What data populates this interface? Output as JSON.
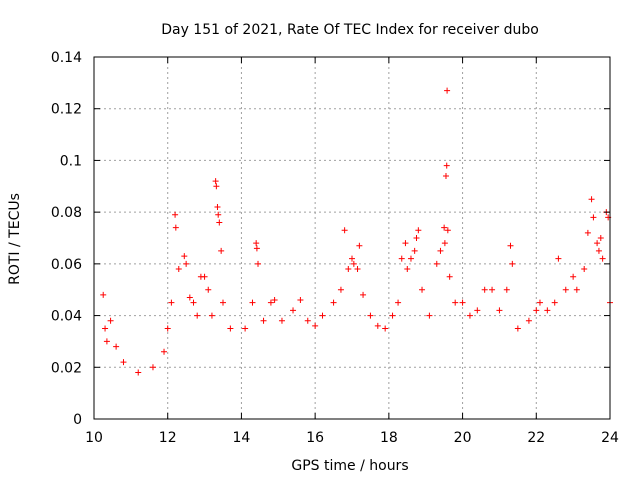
{
  "chart_data": {
    "type": "scatter",
    "title": "Day 151 of 2021, Rate Of TEC Index for receiver dubo",
    "xlabel": "GPS time / hours",
    "ylabel": "ROTI / TECUs",
    "xlim": [
      10,
      24
    ],
    "ylim": [
      0,
      0.14
    ],
    "x_ticks": [
      10,
      12,
      14,
      16,
      18,
      20,
      22,
      24
    ],
    "x_tick_labels": [
      "10",
      "12",
      "14",
      "16",
      "18",
      "20",
      "22",
      "24"
    ],
    "y_ticks": [
      0,
      0.02,
      0.04,
      0.06,
      0.08,
      0.1,
      0.12,
      0.14
    ],
    "y_tick_labels": [
      "0",
      "0.02",
      "0.04",
      "0.06",
      "0.08",
      "0.1",
      "0.12",
      "0.14"
    ],
    "grid": true,
    "marker": "+",
    "color": "#ff0000",
    "series": [
      {
        "points": [
          [
            10.25,
            0.048
          ],
          [
            10.3,
            0.035
          ],
          [
            10.35,
            0.03
          ],
          [
            10.45,
            0.038
          ],
          [
            10.6,
            0.028
          ],
          [
            10.8,
            0.022
          ],
          [
            11.2,
            0.018
          ],
          [
            11.6,
            0.02
          ],
          [
            11.9,
            0.026
          ],
          [
            12.0,
            0.035
          ],
          [
            12.1,
            0.045
          ],
          [
            12.2,
            0.079
          ],
          [
            12.22,
            0.074
          ],
          [
            12.3,
            0.058
          ],
          [
            12.45,
            0.063
          ],
          [
            12.5,
            0.06
          ],
          [
            12.6,
            0.047
          ],
          [
            12.7,
            0.045
          ],
          [
            12.8,
            0.04
          ],
          [
            12.9,
            0.055
          ],
          [
            13.0,
            0.055
          ],
          [
            13.1,
            0.05
          ],
          [
            13.2,
            0.04
          ],
          [
            13.3,
            0.092
          ],
          [
            13.32,
            0.09
          ],
          [
            13.35,
            0.082
          ],
          [
            13.37,
            0.079
          ],
          [
            13.4,
            0.076
          ],
          [
            13.45,
            0.065
          ],
          [
            13.5,
            0.045
          ],
          [
            13.7,
            0.035
          ],
          [
            14.1,
            0.035
          ],
          [
            14.3,
            0.045
          ],
          [
            14.4,
            0.068
          ],
          [
            14.42,
            0.066
          ],
          [
            14.45,
            0.06
          ],
          [
            14.6,
            0.038
          ],
          [
            14.8,
            0.045
          ],
          [
            14.9,
            0.046
          ],
          [
            15.1,
            0.038
          ],
          [
            15.4,
            0.042
          ],
          [
            15.6,
            0.046
          ],
          [
            15.8,
            0.038
          ],
          [
            16.0,
            0.036
          ],
          [
            16.2,
            0.04
          ],
          [
            16.5,
            0.045
          ],
          [
            16.7,
            0.05
          ],
          [
            16.8,
            0.073
          ],
          [
            16.9,
            0.058
          ],
          [
            17.0,
            0.062
          ],
          [
            17.05,
            0.06
          ],
          [
            17.15,
            0.058
          ],
          [
            17.2,
            0.067
          ],
          [
            17.3,
            0.048
          ],
          [
            17.5,
            0.04
          ],
          [
            17.7,
            0.036
          ],
          [
            17.9,
            0.035
          ],
          [
            18.1,
            0.04
          ],
          [
            18.25,
            0.045
          ],
          [
            18.35,
            0.062
          ],
          [
            18.45,
            0.068
          ],
          [
            18.5,
            0.058
          ],
          [
            18.6,
            0.062
          ],
          [
            18.7,
            0.065
          ],
          [
            18.75,
            0.07
          ],
          [
            18.8,
            0.073
          ],
          [
            18.9,
            0.05
          ],
          [
            19.1,
            0.04
          ],
          [
            19.3,
            0.06
          ],
          [
            19.4,
            0.065
          ],
          [
            19.5,
            0.074
          ],
          [
            19.52,
            0.068
          ],
          [
            19.55,
            0.094
          ],
          [
            19.57,
            0.098
          ],
          [
            19.58,
            0.127
          ],
          [
            19.6,
            0.073
          ],
          [
            19.65,
            0.055
          ],
          [
            19.8,
            0.045
          ],
          [
            20.0,
            0.045
          ],
          [
            20.2,
            0.04
          ],
          [
            20.4,
            0.042
          ],
          [
            20.6,
            0.05
          ],
          [
            20.8,
            0.05
          ],
          [
            21.0,
            0.042
          ],
          [
            21.2,
            0.05
          ],
          [
            21.3,
            0.067
          ],
          [
            21.35,
            0.06
          ],
          [
            21.5,
            0.035
          ],
          [
            21.8,
            0.038
          ],
          [
            22.0,
            0.042
          ],
          [
            22.1,
            0.045
          ],
          [
            22.3,
            0.042
          ],
          [
            22.5,
            0.045
          ],
          [
            22.6,
            0.062
          ],
          [
            22.8,
            0.05
          ],
          [
            23.0,
            0.055
          ],
          [
            23.1,
            0.05
          ],
          [
            23.3,
            0.058
          ],
          [
            23.4,
            0.072
          ],
          [
            23.5,
            0.085
          ],
          [
            23.55,
            0.078
          ],
          [
            23.65,
            0.068
          ],
          [
            23.7,
            0.065
          ],
          [
            23.75,
            0.07
          ],
          [
            23.8,
            0.062
          ],
          [
            23.9,
            0.08
          ],
          [
            23.95,
            0.078
          ],
          [
            24.0,
            0.045
          ]
        ]
      }
    ]
  }
}
